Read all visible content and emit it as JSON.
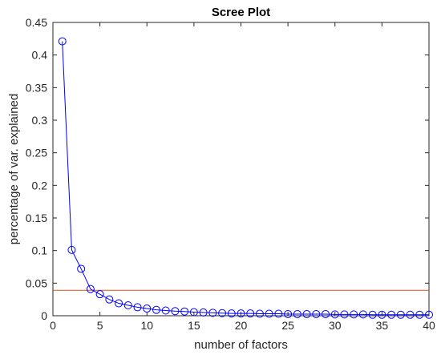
{
  "chart_data": {
    "type": "line",
    "title": "Scree Plot",
    "xlabel": "number of factors",
    "ylabel": "percentage of var. explained",
    "xlim": [
      0,
      40
    ],
    "ylim": [
      0,
      0.45
    ],
    "xticks": [
      0,
      5,
      10,
      15,
      20,
      25,
      30,
      35,
      40
    ],
    "yticks": [
      0,
      0.05,
      0.1,
      0.15,
      0.2,
      0.25,
      0.3,
      0.35,
      0.4,
      0.45
    ],
    "xtick_labels": [
      "0",
      "5",
      "10",
      "15",
      "20",
      "25",
      "30",
      "35",
      "40"
    ],
    "ytick_labels": [
      "0",
      "0.05",
      "0.1",
      "0.15",
      "0.2",
      "0.25",
      "0.3",
      "0.35",
      "0.4",
      "0.45"
    ],
    "grid": false,
    "series": [
      {
        "marker": "circle",
        "color": "#0000ff",
        "x": [
          1,
          2,
          3,
          4,
          5,
          6,
          7,
          8,
          9,
          10,
          11,
          12,
          13,
          14,
          15,
          16,
          17,
          18,
          19,
          20,
          21,
          22,
          23,
          24,
          25,
          26,
          27,
          28,
          29,
          30,
          31,
          32,
          33,
          34,
          35,
          36,
          37,
          38,
          39,
          40
        ],
        "values": [
          0.421,
          0.101,
          0.072,
          0.041,
          0.033,
          0.025,
          0.019,
          0.016,
          0.013,
          0.011,
          0.009,
          0.008,
          0.007,
          0.0065,
          0.0055,
          0.005,
          0.0045,
          0.004,
          0.0035,
          0.0035,
          0.0035,
          0.003,
          0.003,
          0.003,
          0.0025,
          0.0025,
          0.0025,
          0.0025,
          0.0025,
          0.002,
          0.002,
          0.002,
          0.002,
          0.0015,
          0.0015,
          0.0015,
          0.0015,
          0.0015,
          0.0015,
          0.0015
        ]
      }
    ],
    "reference_line": {
      "y": 0.039,
      "color": "#d95319"
    },
    "axes_color": "#262626"
  }
}
